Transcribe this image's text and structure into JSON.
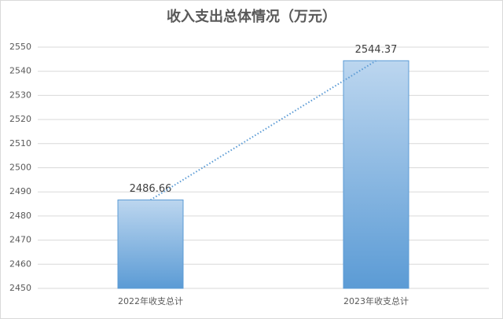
{
  "chart_data": {
    "type": "bar",
    "title": "收入支出总体情况（万元）",
    "categories": [
      "2022年收支总计",
      "2023年收支总计"
    ],
    "values": [
      2486.66,
      2544.37
    ],
    "color": "#5b9bd5",
    "ylim": [
      2450,
      2550
    ],
    "yticks": [
      2450,
      2460,
      2470,
      2480,
      2490,
      2500,
      2510,
      2520,
      2530,
      2540,
      2550
    ],
    "grid": true,
    "trendline": true
  }
}
